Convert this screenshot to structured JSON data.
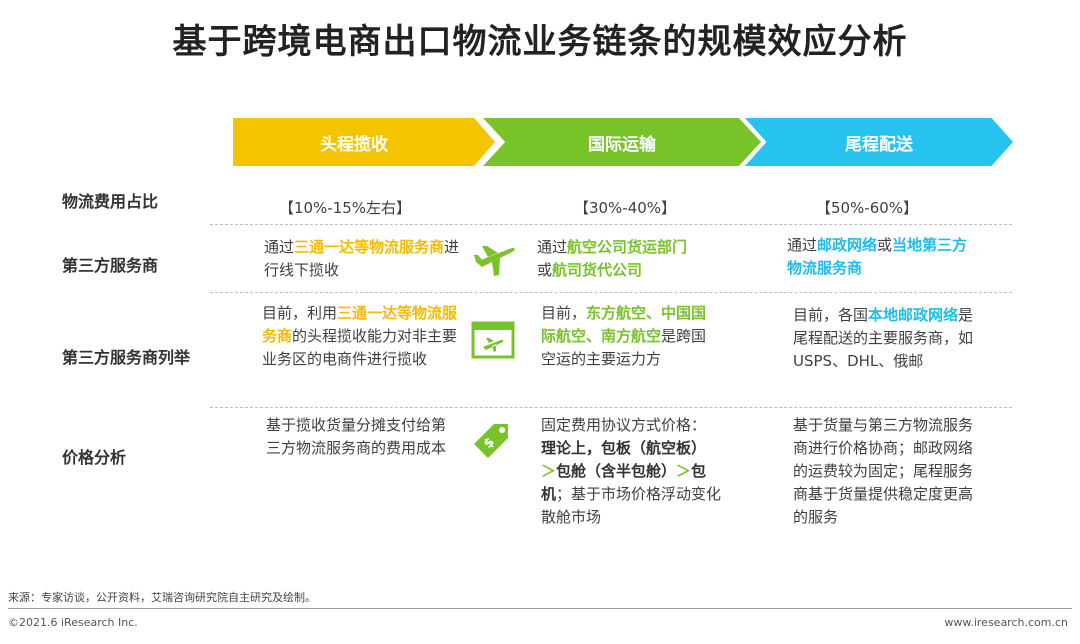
{
  "title": "基于跨境电商出口物流业务链条的规模效应分析",
  "stages": [
    "头程揽收",
    "国际运输",
    "尾程配送"
  ],
  "colors": {
    "stage1": "#f5c400",
    "stage2": "#78c22a",
    "stage3": "#25c3ee"
  },
  "rows": {
    "cost_share": "物流费用占比",
    "provider": "第三方服务商",
    "provider_list": "第三方服务商列举",
    "price": "价格分析"
  },
  "cost_share": [
    "【10%-15%左右】",
    "【30%-40%】",
    "【50%-60%】"
  ],
  "provider": {
    "c1": {
      "p1": "通过",
      "h1": "三通一达等物流服务商",
      "p2": "进行线下揽收"
    },
    "c2": {
      "p1": "通过",
      "h1": "航空公司货运部门",
      "p2": "或",
      "h2": "航司货代公司"
    },
    "c3": {
      "p1": "通过",
      "h1": "邮政网络",
      "p2": "或",
      "h2": "当地第三方物流服务商"
    }
  },
  "provider_list": {
    "c1": {
      "p1": "目前，利用",
      "h1": "三通一达等物流服务商",
      "p2": "的头程揽收能力对非主要业务区的电商件进行揽收"
    },
    "c2": {
      "p1": "目前，",
      "h1": "东方航空、中国国际航空、南方航空",
      "p2": "是跨国空运的主要运力方"
    },
    "c3": {
      "p1": "目前，各国",
      "h1": "本地邮政网络",
      "p2": "是尾程配送的主要服务商，如USPS、DHL、俄邮"
    }
  },
  "price": {
    "c1": "基于揽收货量分摊支付给第三方物流服务商的费用成本",
    "c2": {
      "p1": "固定费用协议方式价格：",
      "b1": "理论上，包板（航空板）",
      "s1": "＞",
      "b2": "包舱（含半包舱）",
      "s2": "＞",
      "b3": "包机",
      "p2": "；基于市场价格浮动变化散舱市场"
    },
    "c3": "基于货量与第三方物流服务商进行价格协商；邮政网络的运费较为固定；尾程服务商基于货量提供稳定度更高的服务"
  },
  "icons": [
    "airplane-icon",
    "boarding-pass-icon",
    "price-tag-icon"
  ],
  "footer": {
    "source": "来源：专家访谈，公开资料，艾瑞咨询研究院自主研究及绘制。",
    "copyright": "©2021.6 iResearch Inc.",
    "website": "www.iresearch.com.cn"
  }
}
